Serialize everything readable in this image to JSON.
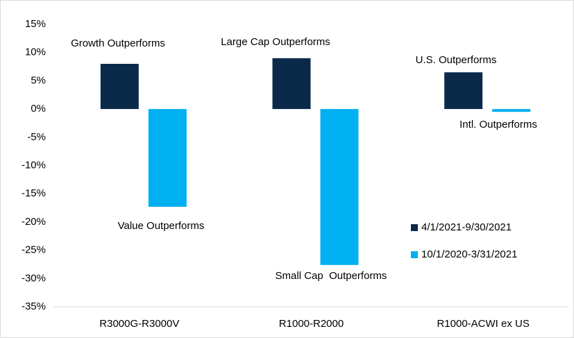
{
  "chart_data": {
    "type": "bar",
    "categories": [
      "R3000G-R3000V",
      "R1000-R2000",
      "R1000-ACWI ex US"
    ],
    "series": [
      {
        "name": "4/1/2021-9/30/2021",
        "color": "#0b2a4a",
        "values": [
          8,
          9,
          6.5
        ]
      },
      {
        "name": "10/1/2020-3/31/2021",
        "color": "#00b0f0",
        "values": [
          -17.3,
          -27.6,
          -0.5
        ]
      }
    ],
    "ylim": [
      -35,
      15
    ],
    "yticks": [
      {
        "value": 15,
        "label": "15%"
      },
      {
        "value": 10,
        "label": "10%"
      },
      {
        "value": 5,
        "label": "5%"
      },
      {
        "value": 0,
        "label": "0%"
      },
      {
        "value": -5,
        "label": "-5%"
      },
      {
        "value": -10,
        "label": "-10%"
      },
      {
        "value": -15,
        "label": "-15%"
      },
      {
        "value": -20,
        "label": "-20%"
      },
      {
        "value": -25,
        "label": "-25%"
      },
      {
        "value": -30,
        "label": "-30%"
      },
      {
        "value": -35,
        "label": "-35%"
      }
    ],
    "grid": false,
    "legend": "lower right",
    "annotations": [
      "Growth Outperforms",
      "Large Cap Outperforms",
      "U.S. Outperforms",
      "Value Outperforms",
      "Small Cap  Outperforms",
      "Intl. Outperforms"
    ]
  }
}
